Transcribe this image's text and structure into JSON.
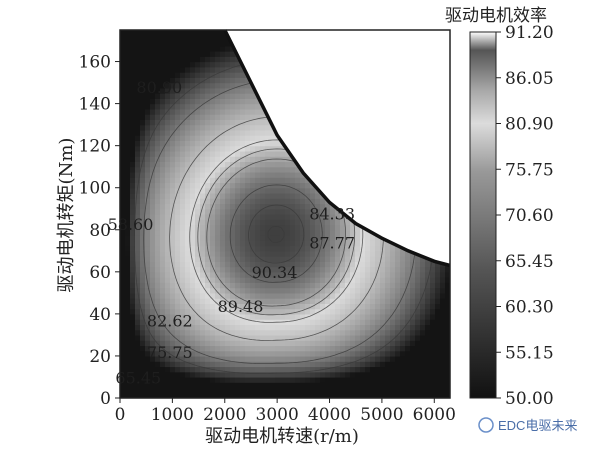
{
  "chart_data": {
    "type": "heatmap",
    "xlabel": "驱动电机转速(r/m)",
    "ylabel": "驱动电机转矩(Nm)",
    "colorbar_title": "驱动电机效率",
    "xlim": [
      0,
      6300
    ],
    "ylim": [
      0,
      175
    ],
    "x_ticks": [
      0,
      1000,
      2000,
      3000,
      4000,
      5000,
      6000
    ],
    "y_ticks": [
      0,
      20,
      40,
      60,
      80,
      100,
      120,
      140,
      160
    ],
    "colorbar_ticks": [
      91.2,
      86.05,
      80.9,
      75.75,
      70.6,
      65.45,
      60.3,
      55.15,
      50.0
    ],
    "colorbar_tick_labels": [
      "91.20",
      "86.05",
      "80.90",
      "75.75",
      "70.60",
      "65.45",
      "60.30",
      "55.15",
      "50.00"
    ],
    "colorbar_range": [
      50.0,
      91.2
    ],
    "colormap": "grayscale (low = black, high = white)",
    "peak": {
      "x": 3000,
      "y": 75,
      "value": 91.2
    },
    "contour_labels": [
      {
        "text": "80.90",
        "x": 750,
        "y": 145
      },
      {
        "text": "58.60",
        "x": 200,
        "y": 80
      },
      {
        "text": "84.33",
        "x": 4050,
        "y": 85
      },
      {
        "text": "87.77",
        "x": 4050,
        "y": 71
      },
      {
        "text": "90.34",
        "x": 2950,
        "y": 57
      },
      {
        "text": "89.48",
        "x": 2300,
        "y": 41
      },
      {
        "text": "82.62",
        "x": 950,
        "y": 34
      },
      {
        "text": "75.75",
        "x": 950,
        "y": 19
      },
      {
        "text": "65.45",
        "x": 350,
        "y": 7
      }
    ],
    "max_torque_curve": [
      [
        2000,
        175
      ],
      [
        2500,
        150
      ],
      [
        3000,
        125
      ],
      [
        3500,
        107
      ],
      [
        4000,
        93
      ],
      [
        4500,
        83
      ],
      [
        5000,
        76
      ],
      [
        5500,
        70
      ],
      [
        6000,
        65
      ],
      [
        6300,
        63
      ]
    ],
    "grid": false
  },
  "watermark": "EDC电驱未来"
}
